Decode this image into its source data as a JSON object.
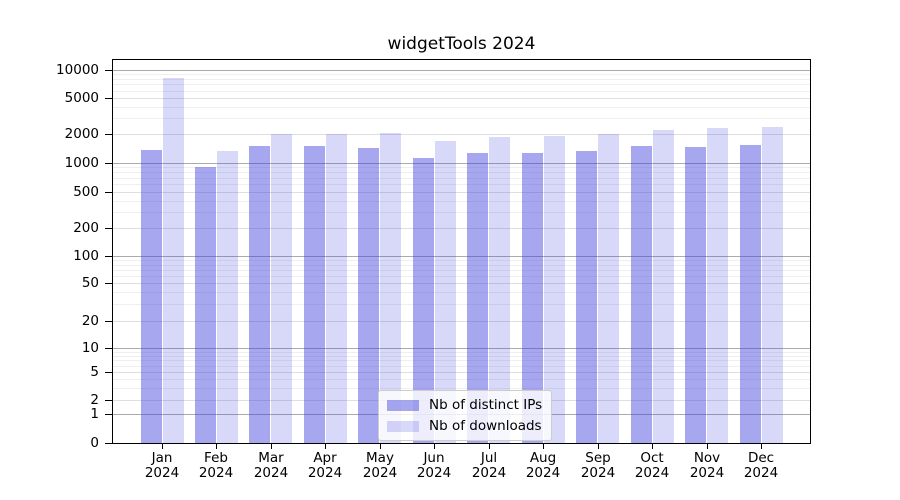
{
  "title": "widgetTools 2024",
  "chart_data": {
    "type": "bar",
    "title": "widgetTools 2024",
    "categories": [
      "Jan",
      "Feb",
      "Mar",
      "Apr",
      "May",
      "Jun",
      "Jul",
      "Aug",
      "Sep",
      "Oct",
      "Nov",
      "Dec"
    ],
    "category_year": "2024",
    "series": [
      {
        "name": "Nb of distinct IPs",
        "color": "rgba(60,60,220,0.45)",
        "values": [
          1350,
          920,
          1500,
          1490,
          1420,
          1130,
          1280,
          1260,
          1320,
          1500,
          1460,
          1530
        ]
      },
      {
        "name": "Nb of downloads",
        "color": "rgba(60,60,220,0.20)",
        "values": [
          8200,
          1330,
          2000,
          2010,
          2050,
          1690,
          1870,
          1910,
          1990,
          2210,
          2330,
          2390
        ]
      }
    ],
    "yscale": "symlog",
    "yticks": [
      0,
      1,
      2,
      5,
      10,
      20,
      50,
      100,
      200,
      500,
      1000,
      2000,
      5000,
      10000
    ],
    "ylim": [
      0,
      12000
    ],
    "xlabel": "",
    "ylabel": "",
    "grid": true,
    "legend_position": "lower center"
  },
  "colors": {
    "bar_dark": "rgba(60,60,220,0.45)",
    "bar_light": "rgba(60,60,220,0.20)",
    "grid_major": "#ababab",
    "grid_minor": "#efefef",
    "background": "#ffffff"
  }
}
